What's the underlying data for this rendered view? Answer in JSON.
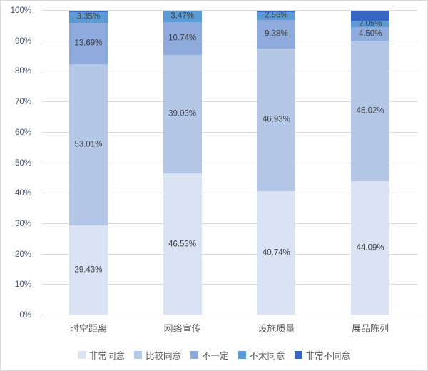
{
  "chart_data": {
    "type": "bar",
    "subtype": "stacked-100",
    "orientation": "vertical",
    "title": "",
    "xlabel": "",
    "ylabel": "",
    "categories": [
      "时空距离",
      "网络宣传",
      "设施质量",
      "展品陈列"
    ],
    "series": [
      {
        "name": "非常同意",
        "color": "#dae3f3",
        "values": [
          29.43,
          46.53,
          40.74,
          44.09
        ],
        "data_labels": [
          "29.43%",
          "46.53%",
          "40.74%",
          "44.09%"
        ]
      },
      {
        "name": "比较同意",
        "color": "#b4c7e7",
        "values": [
          53.01,
          39.03,
          46.93,
          46.02
        ],
        "data_labels": [
          "53.01%",
          "39.03%",
          "46.93%",
          "46.02%"
        ]
      },
      {
        "name": "不一定",
        "color": "#8faadc",
        "values": [
          13.69,
          10.74,
          9.38,
          4.5
        ],
        "data_labels": [
          "13.69%",
          "10.74%",
          "9.38%",
          "4.50%"
        ]
      },
      {
        "name": "不太同意",
        "color": "#5b9bd5",
        "values": [
          3.35,
          3.47,
          2.56,
          2.05
        ],
        "data_labels": [
          "3.35%",
          "3.47%",
          "2.56%",
          "2.05%"
        ]
      },
      {
        "name": "非常不同意",
        "color": "#3766c4",
        "values": [
          0.52,
          0.23,
          0.39,
          3.34
        ],
        "data_labels": null
      }
    ],
    "y_axis": {
      "min": 0,
      "max": 100,
      "ticks": [
        "0%",
        "10%",
        "20%",
        "30%",
        "40%",
        "50%",
        "60%",
        "70%",
        "80%",
        "90%",
        "100%"
      ],
      "grid": true
    },
    "legend_position": "bottom"
  }
}
